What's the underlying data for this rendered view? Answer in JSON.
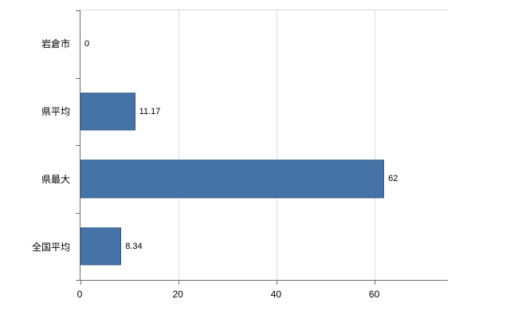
{
  "chart_data": {
    "type": "bar",
    "orientation": "horizontal",
    "title": "",
    "xlabel": "",
    "ylabel": "",
    "categories": [
      "岩倉市",
      "県平均",
      "県最大",
      "全国平均"
    ],
    "values": [
      0,
      11.17,
      62,
      8.34
    ],
    "value_labels": [
      "0",
      "11.17",
      "62",
      "8.34"
    ],
    "xlim": [
      0,
      75
    ],
    "x_ticks": [
      0,
      20,
      40,
      60
    ],
    "x_tick_labels": [
      "0",
      "20",
      "40",
      "60"
    ],
    "grid": true,
    "legend": "none",
    "colors": {
      "bar_fill": "#4572a7",
      "bar_border": "#2f5a87",
      "gridline": "#dcdcdc",
      "axis": "#6f6f6f",
      "background": "#ffffff",
      "text": "#000000"
    }
  }
}
